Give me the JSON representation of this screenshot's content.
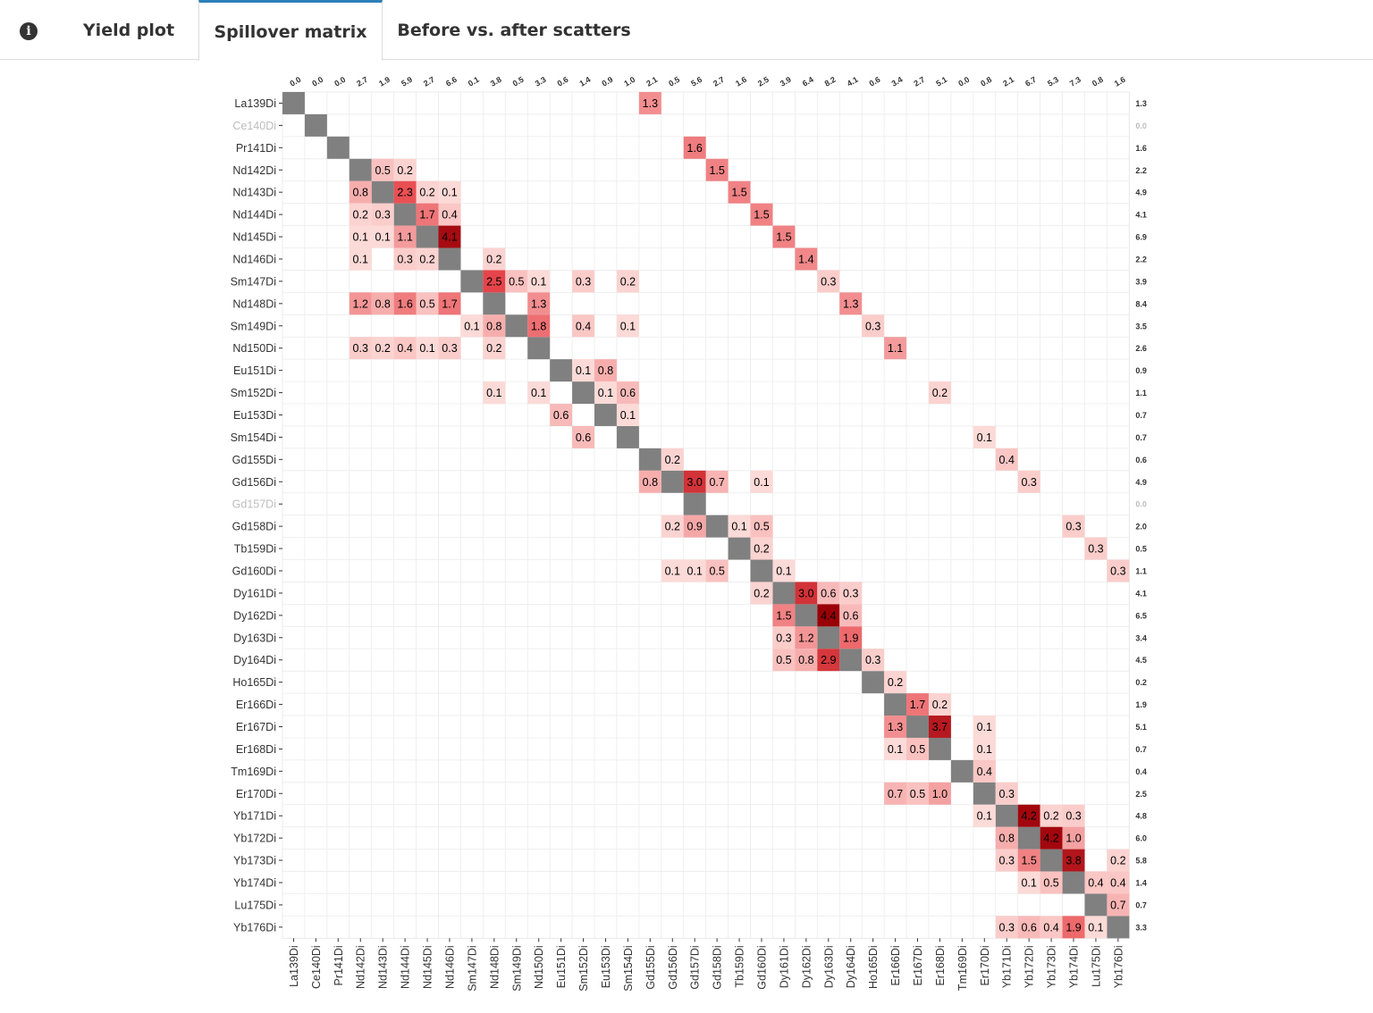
{
  "tabs": {
    "info_icon": "info-circle-icon",
    "items": [
      {
        "label": "Yield plot",
        "active": false
      },
      {
        "label": "Spillover matrix",
        "active": true
      },
      {
        "label": "Before vs. after scatters",
        "active": false
      }
    ]
  },
  "chart_data": {
    "type": "heatmap",
    "title": "",
    "xlabel": "",
    "ylabel": "",
    "channels": [
      "La139Di",
      "Ce140Di",
      "Pr141Di",
      "Nd142Di",
      "Nd143Di",
      "Nd144Di",
      "Nd145Di",
      "Nd146Di",
      "Sm147Di",
      "Nd148Di",
      "Sm149Di",
      "Nd150Di",
      "Eu151Di",
      "Sm152Di",
      "Eu153Di",
      "Sm154Di",
      "Gd155Di",
      "Gd156Di",
      "Gd157Di",
      "Gd158Di",
      "Tb159Di",
      "Gd160Di",
      "Dy161Di",
      "Dy162Di",
      "Dy163Di",
      "Dy164Di",
      "Ho165Di",
      "Er166Di",
      "Er167Di",
      "Er168Di",
      "Tm169Di",
      "Er170Di",
      "Yb171Di",
      "Yb172Di",
      "Yb173Di",
      "Yb174Di",
      "Lu175Di",
      "Yb176Di"
    ],
    "rows": [
      "La139Di",
      "Ce140Di",
      "Pr141Di",
      "Nd142Di",
      "Nd143Di",
      "Nd144Di",
      "Nd145Di",
      "Nd146Di",
      "Sm147Di",
      "Nd148Di",
      "Sm149Di",
      "Nd150Di",
      "Eu151Di",
      "Sm152Di",
      "Eu153Di",
      "Sm154Di",
      "Gd155Di",
      "Gd156Di",
      "Gd157Di",
      "Gd158Di",
      "Tb159Di",
      "Gd160Di",
      "Dy161Di",
      "Dy162Di",
      "Dy163Di",
      "Dy164Di",
      "Ho165Di",
      "Er166Di",
      "Er167Di",
      "Er168Di",
      "Tm169Di",
      "Er170Di",
      "Yb171Di",
      "Yb172Di",
      "Yb173Di",
      "Yb174Di",
      "Lu175Di",
      "Yb176Di"
    ],
    "inactive_rows": [
      "Ce140Di",
      "Gd157Di"
    ],
    "column_totals": [
      "0.0",
      "0.0",
      "0.0",
      "2.7",
      "1.9",
      "5.9",
      "2.7",
      "6.6",
      "0.1",
      "3.8",
      "0.5",
      "3.3",
      "0.6",
      "1.4",
      "0.9",
      "1.0",
      "2.1",
      "0.5",
      "5.6",
      "2.7",
      "1.6",
      "2.5",
      "3.9",
      "6.4",
      "8.2",
      "4.1",
      "0.6",
      "3.4",
      "2.7",
      "5.1",
      "0.0",
      "0.8",
      "2.1",
      "6.7",
      "5.3",
      "7.3",
      "0.8",
      "1.6"
    ],
    "row_totals": [
      "1.3",
      "0.0",
      "1.6",
      "2.2",
      "4.9",
      "4.1",
      "6.9",
      "2.2",
      "3.9",
      "8.4",
      "3.5",
      "2.6",
      "0.9",
      "1.1",
      "0.7",
      "0.7",
      "0.6",
      "4.9",
      "0.0",
      "2.0",
      "0.5",
      "1.1",
      "4.1",
      "6.5",
      "3.4",
      "4.5",
      "0.2",
      "1.9",
      "5.1",
      "0.7",
      "0.4",
      "2.5",
      "4.8",
      "6.0",
      "5.8",
      "1.4",
      "0.7",
      "3.3"
    ],
    "color_scale": {
      "low": "#fde0dd",
      "mid": "#e8484d",
      "high": "#9a0007",
      "diagonal": "#808080",
      "max": 4.4
    },
    "cells": [
      {
        "row": "La139Di",
        "col": "Gd155Di",
        "value": "1.3"
      },
      {
        "row": "Pr141Di",
        "col": "Gd157Di",
        "value": "1.6"
      },
      {
        "row": "Nd142Di",
        "col": "Nd143Di",
        "value": "0.5"
      },
      {
        "row": "Nd142Di",
        "col": "Nd144Di",
        "value": "0.2"
      },
      {
        "row": "Nd142Di",
        "col": "Gd158Di",
        "value": "1.5"
      },
      {
        "row": "Nd143Di",
        "col": "Nd142Di",
        "value": "0.8"
      },
      {
        "row": "Nd143Di",
        "col": "Nd144Di",
        "value": "2.3"
      },
      {
        "row": "Nd143Di",
        "col": "Nd145Di",
        "value": "0.2"
      },
      {
        "row": "Nd143Di",
        "col": "Nd146Di",
        "value": "0.1"
      },
      {
        "row": "Nd143Di",
        "col": "Tb159Di",
        "value": "1.5"
      },
      {
        "row": "Nd144Di",
        "col": "Nd142Di",
        "value": "0.2"
      },
      {
        "row": "Nd144Di",
        "col": "Nd143Di",
        "value": "0.3"
      },
      {
        "row": "Nd144Di",
        "col": "Nd145Di",
        "value": "1.7"
      },
      {
        "row": "Nd144Di",
        "col": "Nd146Di",
        "value": "0.4"
      },
      {
        "row": "Nd144Di",
        "col": "Gd160Di",
        "value": "1.5"
      },
      {
        "row": "Nd145Di",
        "col": "Nd142Di",
        "value": "0.1"
      },
      {
        "row": "Nd145Di",
        "col": "Nd143Di",
        "value": "0.1"
      },
      {
        "row": "Nd145Di",
        "col": "Nd144Di",
        "value": "1.1"
      },
      {
        "row": "Nd145Di",
        "col": "Nd146Di",
        "value": "4.1"
      },
      {
        "row": "Nd145Di",
        "col": "Dy161Di",
        "value": "1.5"
      },
      {
        "row": "Nd146Di",
        "col": "Nd142Di",
        "value": "0.1"
      },
      {
        "row": "Nd146Di",
        "col": "Nd144Di",
        "value": "0.3"
      },
      {
        "row": "Nd146Di",
        "col": "Nd145Di",
        "value": "0.2"
      },
      {
        "row": "Nd146Di",
        "col": "Nd148Di",
        "value": "0.2"
      },
      {
        "row": "Nd146Di",
        "col": "Dy162Di",
        "value": "1.4"
      },
      {
        "row": "Sm147Di",
        "col": "Nd148Di",
        "value": "2.5"
      },
      {
        "row": "Sm147Di",
        "col": "Sm149Di",
        "value": "0.5"
      },
      {
        "row": "Sm147Di",
        "col": "Nd150Di",
        "value": "0.1"
      },
      {
        "row": "Sm147Di",
        "col": "Sm152Di",
        "value": "0.3"
      },
      {
        "row": "Sm147Di",
        "col": "Sm154Di",
        "value": "0.2"
      },
      {
        "row": "Sm147Di",
        "col": "Dy163Di",
        "value": "0.3"
      },
      {
        "row": "Nd148Di",
        "col": "Nd142Di",
        "value": "1.2"
      },
      {
        "row": "Nd148Di",
        "col": "Nd143Di",
        "value": "0.8"
      },
      {
        "row": "Nd148Di",
        "col": "Nd144Di",
        "value": "1.6"
      },
      {
        "row": "Nd148Di",
        "col": "Nd145Di",
        "value": "0.5"
      },
      {
        "row": "Nd148Di",
        "col": "Nd146Di",
        "value": "1.7"
      },
      {
        "row": "Nd148Di",
        "col": "Nd150Di",
        "value": "1.3"
      },
      {
        "row": "Nd148Di",
        "col": "Dy164Di",
        "value": "1.3"
      },
      {
        "row": "Sm149Di",
        "col": "Sm147Di",
        "value": "0.1"
      },
      {
        "row": "Sm149Di",
        "col": "Nd148Di",
        "value": "0.8"
      },
      {
        "row": "Sm149Di",
        "col": "Nd150Di",
        "value": "1.8"
      },
      {
        "row": "Sm149Di",
        "col": "Sm152Di",
        "value": "0.4"
      },
      {
        "row": "Sm149Di",
        "col": "Sm154Di",
        "value": "0.1"
      },
      {
        "row": "Sm149Di",
        "col": "Ho165Di",
        "value": "0.3"
      },
      {
        "row": "Nd150Di",
        "col": "Nd142Di",
        "value": "0.3"
      },
      {
        "row": "Nd150Di",
        "col": "Nd143Di",
        "value": "0.2"
      },
      {
        "row": "Nd150Di",
        "col": "Nd144Di",
        "value": "0.4"
      },
      {
        "row": "Nd150Di",
        "col": "Nd145Di",
        "value": "0.1"
      },
      {
        "row": "Nd150Di",
        "col": "Nd146Di",
        "value": "0.3"
      },
      {
        "row": "Nd150Di",
        "col": "Nd148Di",
        "value": "0.2"
      },
      {
        "row": "Nd150Di",
        "col": "Er166Di",
        "value": "1.1"
      },
      {
        "row": "Eu151Di",
        "col": "Sm152Di",
        "value": "0.1"
      },
      {
        "row": "Eu151Di",
        "col": "Eu153Di",
        "value": "0.8"
      },
      {
        "row": "Sm152Di",
        "col": "Nd148Di",
        "value": "0.1"
      },
      {
        "row": "Sm152Di",
        "col": "Nd150Di",
        "value": "0.1"
      },
      {
        "row": "Sm152Di",
        "col": "Eu153Di",
        "value": "0.1"
      },
      {
        "row": "Sm152Di",
        "col": "Sm154Di",
        "value": "0.6"
      },
      {
        "row": "Sm152Di",
        "col": "Er168Di",
        "value": "0.2"
      },
      {
        "row": "Eu153Di",
        "col": "Eu151Di",
        "value": "0.6"
      },
      {
        "row": "Eu153Di",
        "col": "Sm154Di",
        "value": "0.1"
      },
      {
        "row": "Sm154Di",
        "col": "Sm152Di",
        "value": "0.6"
      },
      {
        "row": "Sm154Di",
        "col": "Er170Di",
        "value": "0.1"
      },
      {
        "row": "Gd155Di",
        "col": "Gd156Di",
        "value": "0.2"
      },
      {
        "row": "Gd155Di",
        "col": "Yb171Di",
        "value": "0.4"
      },
      {
        "row": "Gd156Di",
        "col": "Gd155Di",
        "value": "0.8"
      },
      {
        "row": "Gd156Di",
        "col": "Gd157Di",
        "value": "3.0"
      },
      {
        "row": "Gd156Di",
        "col": "Gd158Di",
        "value": "0.7"
      },
      {
        "row": "Gd156Di",
        "col": "Gd160Di",
        "value": "0.1"
      },
      {
        "row": "Gd156Di",
        "col": "Yb172Di",
        "value": "0.3"
      },
      {
        "row": "Gd158Di",
        "col": "Gd156Di",
        "value": "0.2"
      },
      {
        "row": "Gd158Di",
        "col": "Gd157Di",
        "value": "0.9"
      },
      {
        "row": "Gd158Di",
        "col": "Tb159Di",
        "value": "0.1"
      },
      {
        "row": "Gd158Di",
        "col": "Gd160Di",
        "value": "0.5"
      },
      {
        "row": "Gd158Di",
        "col": "Yb174Di",
        "value": "0.3"
      },
      {
        "row": "Tb159Di",
        "col": "Gd160Di",
        "value": "0.2"
      },
      {
        "row": "Tb159Di",
        "col": "Lu175Di",
        "value": "0.3"
      },
      {
        "row": "Gd160Di",
        "col": "Gd156Di",
        "value": "0.1"
      },
      {
        "row": "Gd160Di",
        "col": "Gd157Di",
        "value": "0.1"
      },
      {
        "row": "Gd160Di",
        "col": "Gd158Di",
        "value": "0.5"
      },
      {
        "row": "Gd160Di",
        "col": "Dy161Di",
        "value": "0.1"
      },
      {
        "row": "Gd160Di",
        "col": "Yb176Di",
        "value": "0.3"
      },
      {
        "row": "Dy161Di",
        "col": "Gd160Di",
        "value": "0.2"
      },
      {
        "row": "Dy161Di",
        "col": "Dy162Di",
        "value": "3.0"
      },
      {
        "row": "Dy161Di",
        "col": "Dy163Di",
        "value": "0.6"
      },
      {
        "row": "Dy161Di",
        "col": "Dy164Di",
        "value": "0.3"
      },
      {
        "row": "Dy162Di",
        "col": "Dy161Di",
        "value": "1.5"
      },
      {
        "row": "Dy162Di",
        "col": "Dy163Di",
        "value": "4.4"
      },
      {
        "row": "Dy162Di",
        "col": "Dy164Di",
        "value": "0.6"
      },
      {
        "row": "Dy163Di",
        "col": "Dy161Di",
        "value": "0.3"
      },
      {
        "row": "Dy163Di",
        "col": "Dy162Di",
        "value": "1.2"
      },
      {
        "row": "Dy163Di",
        "col": "Dy164Di",
        "value": "1.9"
      },
      {
        "row": "Dy164Di",
        "col": "Dy161Di",
        "value": "0.5"
      },
      {
        "row": "Dy164Di",
        "col": "Dy162Di",
        "value": "0.8"
      },
      {
        "row": "Dy164Di",
        "col": "Dy163Di",
        "value": "2.9"
      },
      {
        "row": "Dy164Di",
        "col": "Ho165Di",
        "value": "0.3"
      },
      {
        "row": "Ho165Di",
        "col": "Er166Di",
        "value": "0.2"
      },
      {
        "row": "Er166Di",
        "col": "Er167Di",
        "value": "1.7"
      },
      {
        "row": "Er166Di",
        "col": "Er168Di",
        "value": "0.2"
      },
      {
        "row": "Er167Di",
        "col": "Er166Di",
        "value": "1.3"
      },
      {
        "row": "Er167Di",
        "col": "Er168Di",
        "value": "3.7"
      },
      {
        "row": "Er167Di",
        "col": "Er170Di",
        "value": "0.1"
      },
      {
        "row": "Er168Di",
        "col": "Er166Di",
        "value": "0.1"
      },
      {
        "row": "Er168Di",
        "col": "Er167Di",
        "value": "0.5"
      },
      {
        "row": "Er168Di",
        "col": "Er170Di",
        "value": "0.1"
      },
      {
        "row": "Tm169Di",
        "col": "Er170Di",
        "value": "0.4"
      },
      {
        "row": "Er170Di",
        "col": "Er166Di",
        "value": "0.7"
      },
      {
        "row": "Er170Di",
        "col": "Er167Di",
        "value": "0.5"
      },
      {
        "row": "Er170Di",
        "col": "Er168Di",
        "value": "1.0"
      },
      {
        "row": "Er170Di",
        "col": "Yb171Di",
        "value": "0.3"
      },
      {
        "row": "Yb171Di",
        "col": "Er170Di",
        "value": "0.1"
      },
      {
        "row": "Yb171Di",
        "col": "Yb172Di",
        "value": "4.2"
      },
      {
        "row": "Yb171Di",
        "col": "Yb173Di",
        "value": "0.2"
      },
      {
        "row": "Yb171Di",
        "col": "Yb174Di",
        "value": "0.3"
      },
      {
        "row": "Yb172Di",
        "col": "Yb171Di",
        "value": "0.8"
      },
      {
        "row": "Yb172Di",
        "col": "Yb173Di",
        "value": "4.2"
      },
      {
        "row": "Yb172Di",
        "col": "Yb174Di",
        "value": "1.0"
      },
      {
        "row": "Yb173Di",
        "col": "Yb171Di",
        "value": "0.3"
      },
      {
        "row": "Yb173Di",
        "col": "Yb172Di",
        "value": "1.5"
      },
      {
        "row": "Yb173Di",
        "col": "Yb174Di",
        "value": "3.8"
      },
      {
        "row": "Yb173Di",
        "col": "Yb176Di",
        "value": "0.2"
      },
      {
        "row": "Yb174Di",
        "col": "Yb172Di",
        "value": "0.1"
      },
      {
        "row": "Yb174Di",
        "col": "Yb173Di",
        "value": "0.5"
      },
      {
        "row": "Yb174Di",
        "col": "Lu175Di",
        "value": "0.4"
      },
      {
        "row": "Yb174Di",
        "col": "Yb176Di",
        "value": "0.4"
      },
      {
        "row": "Lu175Di",
        "col": "Yb176Di",
        "value": "0.7"
      },
      {
        "row": "Yb176Di",
        "col": "Yb171Di",
        "value": "0.3"
      },
      {
        "row": "Yb176Di",
        "col": "Yb172Di",
        "value": "0.6"
      },
      {
        "row": "Yb176Di",
        "col": "Yb173Di",
        "value": "0.4"
      },
      {
        "row": "Yb176Di",
        "col": "Yb174Di",
        "value": "1.9"
      },
      {
        "row": "Yb176Di",
        "col": "Lu175Di",
        "value": "0.1"
      }
    ]
  }
}
